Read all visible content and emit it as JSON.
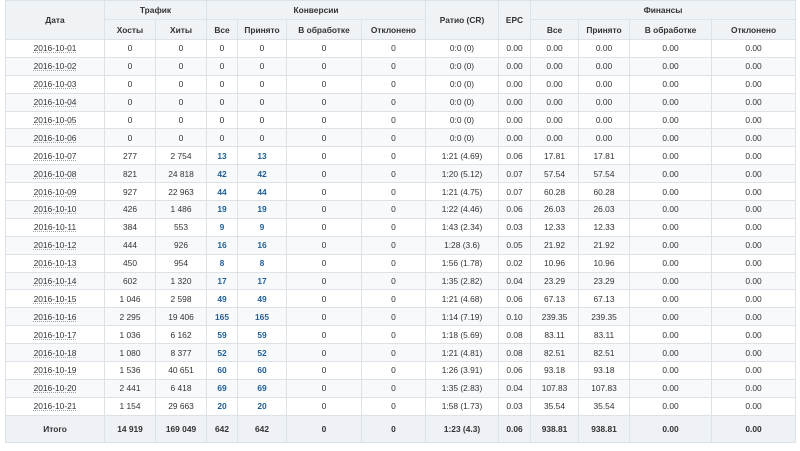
{
  "headers": {
    "date": "Дата",
    "traffic": "Трафик",
    "conversions": "Конверсии",
    "finance": "Финансы",
    "hosts": "Хосты",
    "hits": "Хиты",
    "all": "Все",
    "accepted": "Принято",
    "processing": "В обработке",
    "rejected": "Отклонено",
    "ratio": "Ратио (CR)",
    "epc": "EPC",
    "fin_all": "Все",
    "fin_accepted": "Принято",
    "fin_processing": "В обработке",
    "fin_rejected": "Отклонено"
  },
  "rows": [
    {
      "date": "2016-10-01",
      "hosts": "0",
      "hits": "0",
      "all": "0",
      "accepted": "0",
      "processing": "0",
      "rejected": "0",
      "ratio": "0:0 (0)",
      "epc": "0.00",
      "fin_all": "0.00",
      "fin_accepted": "0.00",
      "fin_processing": "0.00",
      "fin_rejected": "0.00"
    },
    {
      "date": "2016-10-02",
      "hosts": "0",
      "hits": "0",
      "all": "0",
      "accepted": "0",
      "processing": "0",
      "rejected": "0",
      "ratio": "0:0 (0)",
      "epc": "0.00",
      "fin_all": "0.00",
      "fin_accepted": "0.00",
      "fin_processing": "0.00",
      "fin_rejected": "0.00"
    },
    {
      "date": "2016-10-03",
      "hosts": "0",
      "hits": "0",
      "all": "0",
      "accepted": "0",
      "processing": "0",
      "rejected": "0",
      "ratio": "0:0 (0)",
      "epc": "0.00",
      "fin_all": "0.00",
      "fin_accepted": "0.00",
      "fin_processing": "0.00",
      "fin_rejected": "0.00"
    },
    {
      "date": "2016-10-04",
      "hosts": "0",
      "hits": "0",
      "all": "0",
      "accepted": "0",
      "processing": "0",
      "rejected": "0",
      "ratio": "0:0 (0)",
      "epc": "0.00",
      "fin_all": "0.00",
      "fin_accepted": "0.00",
      "fin_processing": "0.00",
      "fin_rejected": "0.00"
    },
    {
      "date": "2016-10-05",
      "hosts": "0",
      "hits": "0",
      "all": "0",
      "accepted": "0",
      "processing": "0",
      "rejected": "0",
      "ratio": "0:0 (0)",
      "epc": "0.00",
      "fin_all": "0.00",
      "fin_accepted": "0.00",
      "fin_processing": "0.00",
      "fin_rejected": "0.00"
    },
    {
      "date": "2016-10-06",
      "hosts": "0",
      "hits": "0",
      "all": "0",
      "accepted": "0",
      "processing": "0",
      "rejected": "0",
      "ratio": "0:0 (0)",
      "epc": "0.00",
      "fin_all": "0.00",
      "fin_accepted": "0.00",
      "fin_processing": "0.00",
      "fin_rejected": "0.00"
    },
    {
      "date": "2016-10-07",
      "hosts": "277",
      "hits": "2 754",
      "all": "13",
      "accepted": "13",
      "processing": "0",
      "rejected": "0",
      "ratio": "1:21 (4.69)",
      "epc": "0.06",
      "fin_all": "17.81",
      "fin_accepted": "17.81",
      "fin_processing": "0.00",
      "fin_rejected": "0.00"
    },
    {
      "date": "2016-10-08",
      "hosts": "821",
      "hits": "24 818",
      "all": "42",
      "accepted": "42",
      "processing": "0",
      "rejected": "0",
      "ratio": "1:20 (5.12)",
      "epc": "0.07",
      "fin_all": "57.54",
      "fin_accepted": "57.54",
      "fin_processing": "0.00",
      "fin_rejected": "0.00"
    },
    {
      "date": "2016-10-09",
      "hosts": "927",
      "hits": "22 963",
      "all": "44",
      "accepted": "44",
      "processing": "0",
      "rejected": "0",
      "ratio": "1:21 (4.75)",
      "epc": "0.07",
      "fin_all": "60.28",
      "fin_accepted": "60.28",
      "fin_processing": "0.00",
      "fin_rejected": "0.00"
    },
    {
      "date": "2016-10-10",
      "hosts": "426",
      "hits": "1 486",
      "all": "19",
      "accepted": "19",
      "processing": "0",
      "rejected": "0",
      "ratio": "1:22 (4.46)",
      "epc": "0.06",
      "fin_all": "26.03",
      "fin_accepted": "26.03",
      "fin_processing": "0.00",
      "fin_rejected": "0.00"
    },
    {
      "date": "2016-10-11",
      "hosts": "384",
      "hits": "553",
      "all": "9",
      "accepted": "9",
      "processing": "0",
      "rejected": "0",
      "ratio": "1:43 (2.34)",
      "epc": "0.03",
      "fin_all": "12.33",
      "fin_accepted": "12.33",
      "fin_processing": "0.00",
      "fin_rejected": "0.00"
    },
    {
      "date": "2016-10-12",
      "hosts": "444",
      "hits": "926",
      "all": "16",
      "accepted": "16",
      "processing": "0",
      "rejected": "0",
      "ratio": "1:28 (3.6)",
      "epc": "0.05",
      "fin_all": "21.92",
      "fin_accepted": "21.92",
      "fin_processing": "0.00",
      "fin_rejected": "0.00"
    },
    {
      "date": "2016-10-13",
      "hosts": "450",
      "hits": "954",
      "all": "8",
      "accepted": "8",
      "processing": "0",
      "rejected": "0",
      "ratio": "1:56 (1.78)",
      "epc": "0.02",
      "fin_all": "10.96",
      "fin_accepted": "10.96",
      "fin_processing": "0.00",
      "fin_rejected": "0.00"
    },
    {
      "date": "2016-10-14",
      "hosts": "602",
      "hits": "1 320",
      "all": "17",
      "accepted": "17",
      "processing": "0",
      "rejected": "0",
      "ratio": "1:35 (2.82)",
      "epc": "0.04",
      "fin_all": "23.29",
      "fin_accepted": "23.29",
      "fin_processing": "0.00",
      "fin_rejected": "0.00"
    },
    {
      "date": "2016-10-15",
      "hosts": "1 046",
      "hits": "2 598",
      "all": "49",
      "accepted": "49",
      "processing": "0",
      "rejected": "0",
      "ratio": "1:21 (4.68)",
      "epc": "0.06",
      "fin_all": "67.13",
      "fin_accepted": "67.13",
      "fin_processing": "0.00",
      "fin_rejected": "0.00"
    },
    {
      "date": "2016-10-16",
      "hosts": "2 295",
      "hits": "19 406",
      "all": "165",
      "accepted": "165",
      "processing": "0",
      "rejected": "0",
      "ratio": "1:14 (7.19)",
      "epc": "0.10",
      "fin_all": "239.35",
      "fin_accepted": "239.35",
      "fin_processing": "0.00",
      "fin_rejected": "0.00"
    },
    {
      "date": "2016-10-17",
      "hosts": "1 036",
      "hits": "6 162",
      "all": "59",
      "accepted": "59",
      "processing": "0",
      "rejected": "0",
      "ratio": "1:18 (5.69)",
      "epc": "0.08",
      "fin_all": "83.11",
      "fin_accepted": "83.11",
      "fin_processing": "0.00",
      "fin_rejected": "0.00"
    },
    {
      "date": "2016-10-18",
      "hosts": "1 080",
      "hits": "8 377",
      "all": "52",
      "accepted": "52",
      "processing": "0",
      "rejected": "0",
      "ratio": "1:21 (4.81)",
      "epc": "0.08",
      "fin_all": "82.51",
      "fin_accepted": "82.51",
      "fin_processing": "0.00",
      "fin_rejected": "0.00"
    },
    {
      "date": "2016-10-19",
      "hosts": "1 536",
      "hits": "40 651",
      "all": "60",
      "accepted": "60",
      "processing": "0",
      "rejected": "0",
      "ratio": "1:26 (3.91)",
      "epc": "0.06",
      "fin_all": "93.18",
      "fin_accepted": "93.18",
      "fin_processing": "0.00",
      "fin_rejected": "0.00"
    },
    {
      "date": "2016-10-20",
      "hosts": "2 441",
      "hits": "6 418",
      "all": "69",
      "accepted": "69",
      "processing": "0",
      "rejected": "0",
      "ratio": "1:35 (2.83)",
      "epc": "0.04",
      "fin_all": "107.83",
      "fin_accepted": "107.83",
      "fin_processing": "0.00",
      "fin_rejected": "0.00"
    },
    {
      "date": "2016-10-21",
      "hosts": "1 154",
      "hits": "29 663",
      "all": "20",
      "accepted": "20",
      "processing": "0",
      "rejected": "0",
      "ratio": "1:58 (1.73)",
      "epc": "0.03",
      "fin_all": "35.54",
      "fin_accepted": "35.54",
      "fin_processing": "0.00",
      "fin_rejected": "0.00"
    }
  ],
  "totals": {
    "label": "Итого",
    "hosts": "14 919",
    "hits": "169 049",
    "all": "642",
    "accepted": "642",
    "processing": "0",
    "rejected": "0",
    "ratio": "1:23 (4.3)",
    "epc": "0.06",
    "fin_all": "938.81",
    "fin_accepted": "938.81",
    "fin_processing": "0.00",
    "fin_rejected": "0.00"
  },
  "colors": {
    "header_bg": "#f0f3f6",
    "border": "#dde2e8",
    "link_blue": "#1f5f99"
  }
}
